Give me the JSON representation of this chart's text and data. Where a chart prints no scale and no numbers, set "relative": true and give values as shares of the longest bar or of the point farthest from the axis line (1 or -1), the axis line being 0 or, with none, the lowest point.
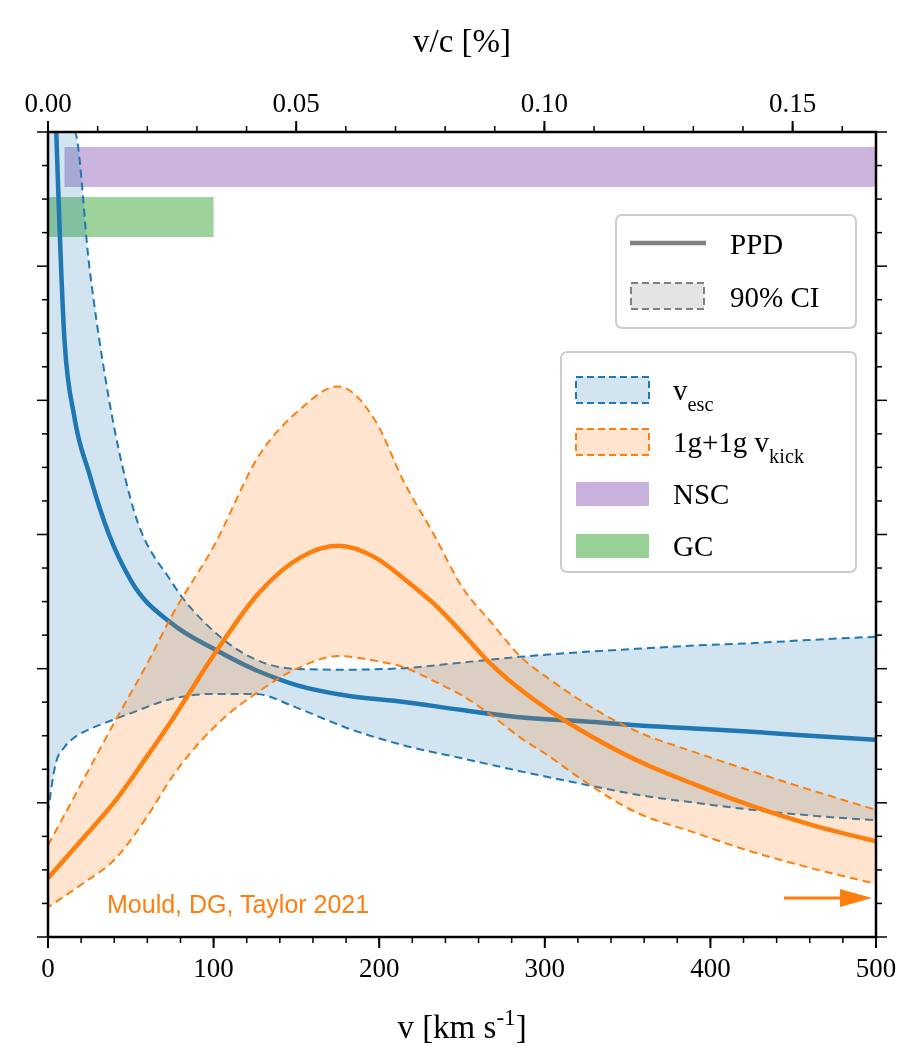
{
  "chart_data": {
    "type": "line",
    "relative": true,
    "xlabel": "v [km s$^{-1}$]",
    "x2label": "v/c [%]",
    "xlim": [
      0,
      500
    ],
    "xticks": [
      0,
      100,
      200,
      300,
      400,
      500
    ],
    "x2lim": [
      0,
      0.1668
    ],
    "x2ticks": [
      {
        "value": 0,
        "label": "0.00"
      },
      {
        "value": 0.05,
        "label": "0.05"
      },
      {
        "value": 0.1,
        "label": "0.10"
      },
      {
        "value": 0.15,
        "label": "0.15"
      }
    ],
    "legend": "top right",
    "series": [
      {
        "name": "v$_{esc}$",
        "color": "#1f77b4",
        "x": [
          0,
          5,
          10,
          16,
          25,
          37,
          50,
          75,
          100,
          125,
          150,
          180,
          215,
          250,
          285,
          330,
          355,
          390,
          425,
          460,
          500
        ],
        "values": [
          null,
          1.0,
          0.74,
          0.645,
          0.575,
          0.499,
          0.443,
          0.389,
          0.358,
          0.332,
          0.313,
          0.3,
          0.292,
          0.282,
          0.273,
          0.267,
          0.263,
          0.259,
          0.255,
          0.25,
          0.245
        ],
        "upper": [
          1.0,
          1.0,
          1.0,
          1.0,
          0.832,
          0.666,
          0.543,
          0.44,
          0.38,
          0.345,
          0.333,
          0.332,
          0.334,
          0.341,
          0.348,
          0.355,
          0.358,
          0.362,
          0.365,
          0.369,
          0.373
        ],
        "lower": [
          0.155,
          0.218,
          0.236,
          0.248,
          0.258,
          0.268,
          0.278,
          0.296,
          0.302,
          0.302,
          0.285,
          0.26,
          0.238,
          0.222,
          0.206,
          0.187,
          0.177,
          0.167,
          0.158,
          0.151,
          0.145
        ]
      },
      {
        "name": "1g+1g v$_{kick}$",
        "color": "#ff7f0e",
        "x": [
          0,
          20,
          41,
          60,
          75,
          100,
          128,
          152,
          175,
          198,
          215,
          233,
          250,
          268,
          285,
          303,
          320,
          355,
          390,
          425,
          460,
          500
        ],
        "values": [
          0.073,
          0.12,
          0.17,
          0.225,
          0.27,
          0.35,
          0.429,
          0.471,
          0.486,
          0.471,
          0.445,
          0.414,
          0.378,
          0.338,
          0.308,
          0.281,
          0.259,
          0.22,
          0.19,
          0.163,
          0.14,
          0.119
        ],
        "upper": [
          0.114,
          0.19,
          0.27,
          0.34,
          0.4,
          0.485,
          0.6,
          0.655,
          0.684,
          0.64,
          0.565,
          0.5,
          0.435,
          0.39,
          0.349,
          0.32,
          0.296,
          0.256,
          0.23,
          0.206,
          0.183,
          0.158
        ],
        "lower": [
          0.037,
          0.065,
          0.098,
          0.15,
          0.199,
          0.26,
          0.306,
          0.335,
          0.349,
          0.343,
          0.335,
          0.318,
          0.3,
          0.275,
          0.248,
          0.224,
          0.199,
          0.155,
          0.13,
          0.106,
          0.086,
          0.066
        ]
      }
    ],
    "bands": [
      {
        "axis": "x",
        "from": 10,
        "to": 500,
        "label": "NSC",
        "color": "#c8b1dc"
      },
      {
        "axis": "x",
        "from": 0,
        "to": 100,
        "label": "GC",
        "color": "#98d095"
      }
    ],
    "annotations": [
      "PPD",
      "90% CI",
      "Mould, DG, Taylor 2021"
    ]
  }
}
